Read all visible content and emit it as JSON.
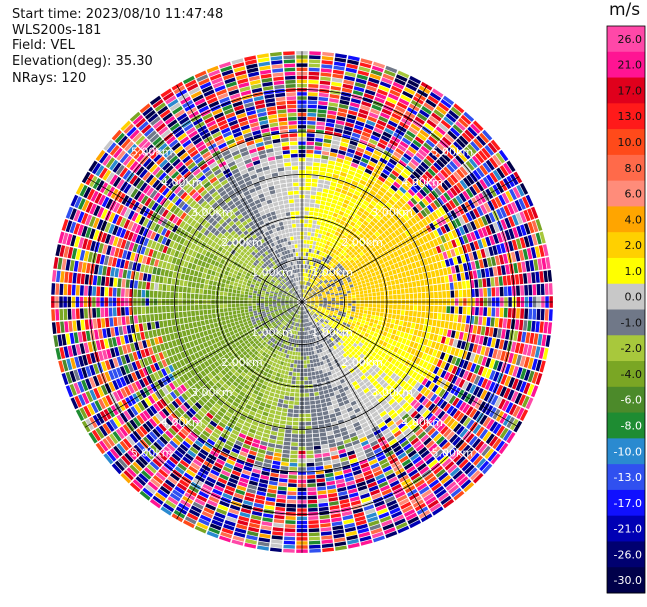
{
  "header": {
    "start_time": "Start time: 2023/08/10 11:47:48",
    "instrument": "WLS200s-181",
    "field": "Field: VEL",
    "elevation": "Elevation(deg): 35.30",
    "nrays": "NRays: 120"
  },
  "colorbar": {
    "unit": "m/s",
    "ticks": [
      "26.0",
      "21.0",
      "17.0",
      "13.0",
      "10.0",
      "8.0",
      "6.0",
      "4.0",
      "2.0",
      "1.0",
      "0.0",
      "-1.0",
      "-2.0",
      "-4.0",
      "-6.0",
      "-8.0",
      "-10.0",
      "-13.0",
      "-17.0",
      "-21.0",
      "-26.0",
      "-30.0"
    ],
    "bins": [
      {
        "from": 26,
        "to": 30,
        "color": "#ff48a8"
      },
      {
        "from": 21,
        "to": 26,
        "color": "#ff1493"
      },
      {
        "from": 17,
        "to": 21,
        "color": "#e0001c"
      },
      {
        "from": 13,
        "to": 17,
        "color": "#ff1a1a"
      },
      {
        "from": 10,
        "to": 13,
        "color": "#ff4a1a"
      },
      {
        "from": 8,
        "to": 10,
        "color": "#ff6a4a"
      },
      {
        "from": 6,
        "to": 8,
        "color": "#ff8c7a"
      },
      {
        "from": 4,
        "to": 6,
        "color": "#ffa500"
      },
      {
        "from": 2,
        "to": 4,
        "color": "#ffd000"
      },
      {
        "from": 1,
        "to": 2,
        "color": "#ffff00"
      },
      {
        "from": 0,
        "to": 1,
        "color": "#c8c8c8"
      },
      {
        "from": -1,
        "to": 0,
        "color": "#707888"
      },
      {
        "from": -2,
        "to": -1,
        "color": "#a8c83c"
      },
      {
        "from": -4,
        "to": -2,
        "color": "#7aa624"
      },
      {
        "from": -6,
        "to": -4,
        "color": "#4c8a2a"
      },
      {
        "from": -8,
        "to": -6,
        "color": "#1e8c32"
      },
      {
        "from": -10,
        "to": -8,
        "color": "#2a8ad0"
      },
      {
        "from": -13,
        "to": -10,
        "color": "#3050f0"
      },
      {
        "from": -17,
        "to": -13,
        "color": "#1010ff"
      },
      {
        "from": -21,
        "to": -17,
        "color": "#0000b4"
      },
      {
        "from": -26,
        "to": -21,
        "color": "#000070"
      },
      {
        "from": -30,
        "to": -26,
        "color": "#00004a"
      }
    ]
  },
  "range_rings": {
    "labels": [
      "1.00km",
      "2.00km",
      "3.00km",
      "4.00km",
      "5.00km"
    ]
  },
  "chart_data": {
    "type": "heatmap",
    "projection": "polar (PPI)",
    "field": "VEL",
    "units": "m/s",
    "rays": 120,
    "range_rings_km": [
      1,
      2,
      3,
      4,
      5
    ],
    "vmin": -30,
    "vmax": 30,
    "pattern": "near range (<~3 km): coherent velocities between -2 and +4 m/s — yellow (positive) on the east/northeast side, green and grey (negative) on the west/southwest side; beyond ~3.5 km: noisy values spanning the full -30 to 30 m/s scale"
  }
}
